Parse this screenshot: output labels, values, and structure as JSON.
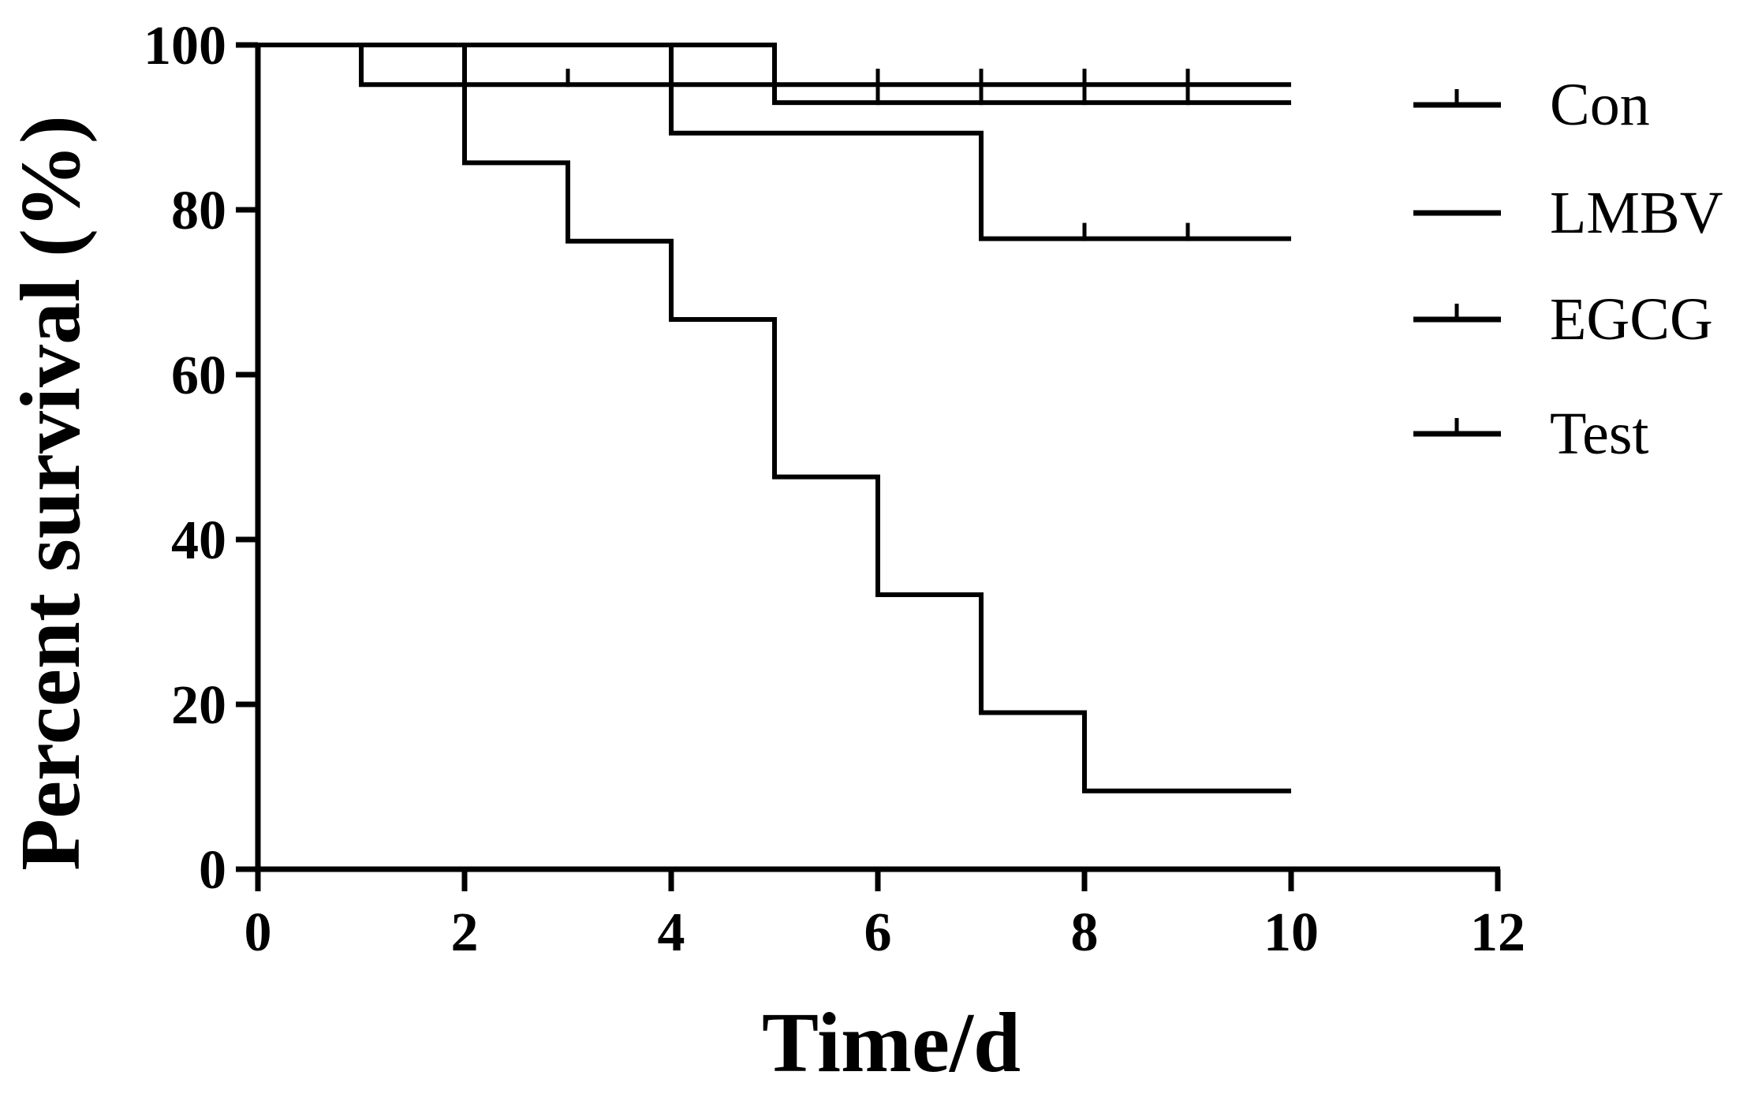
{
  "chart_data": {
    "type": "line",
    "subtype": "kaplan-meier-step",
    "title": "",
    "xlabel": "Time/d",
    "ylabel": "Percent survival (%)",
    "xlim": [
      0,
      12
    ],
    "ylim": [
      0,
      100
    ],
    "xticks": [
      0,
      2,
      4,
      6,
      8,
      10,
      12
    ],
    "yticks": [
      0,
      20,
      40,
      60,
      80,
      100
    ],
    "grid": false,
    "legend_position": "top-right",
    "series": [
      {
        "name": "Con",
        "steps": [
          [
            0,
            100
          ],
          [
            5,
            100
          ],
          [
            5,
            93
          ],
          [
            10,
            93
          ]
        ],
        "censor_marks": [
          [
            6,
            93
          ],
          [
            7,
            93
          ],
          [
            8,
            93
          ],
          [
            9,
            93
          ]
        ]
      },
      {
        "name": "LMBV",
        "steps": [
          [
            0,
            100
          ],
          [
            2,
            100
          ],
          [
            2,
            85.7
          ],
          [
            3,
            85.7
          ],
          [
            3,
            76.2
          ],
          [
            4,
            76.2
          ],
          [
            4,
            66.7
          ],
          [
            5,
            66.7
          ],
          [
            5,
            47.6
          ],
          [
            6,
            47.6
          ],
          [
            6,
            33.3
          ],
          [
            7,
            33.3
          ],
          [
            7,
            19
          ],
          [
            8,
            19
          ],
          [
            8,
            9.5
          ],
          [
            10,
            9.5
          ]
        ],
        "censor_marks": []
      },
      {
        "name": "EGCG",
        "steps": [
          [
            0,
            100
          ],
          [
            1,
            100
          ],
          [
            1,
            95.2
          ],
          [
            10,
            95.2
          ]
        ],
        "censor_marks": [
          [
            3,
            95.2
          ],
          [
            6,
            95.2
          ],
          [
            7,
            95.2
          ],
          [
            8,
            95.2
          ],
          [
            9,
            95.2
          ]
        ]
      },
      {
        "name": "Test",
        "steps": [
          [
            0,
            100
          ],
          [
            4,
            100
          ],
          [
            4,
            89.3
          ],
          [
            7,
            89.3
          ],
          [
            7,
            76.5
          ],
          [
            10,
            76.5
          ]
        ],
        "censor_marks": [
          [
            8,
            76.5
          ],
          [
            9,
            76.5
          ]
        ]
      }
    ]
  }
}
